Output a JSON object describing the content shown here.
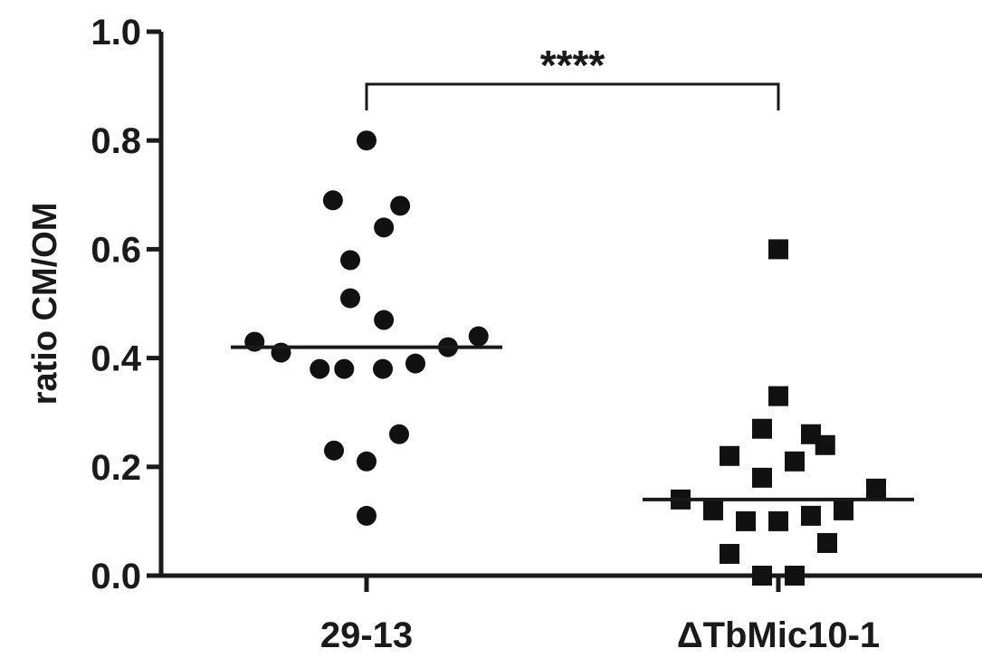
{
  "chart_data": {
    "type": "scatter",
    "title": "",
    "xlabel": "",
    "ylabel": "ratio CM/OM",
    "ylim": [
      0,
      1.0
    ],
    "yticks": [
      "0.0",
      "0.2",
      "0.4",
      "0.6",
      "0.8",
      "1.0"
    ],
    "ytick_values": [
      0,
      0.2,
      0.4,
      0.6,
      0.8,
      1.0
    ],
    "categories": [
      "29-13",
      "ΔTbMic10-1"
    ],
    "grid": false,
    "legend": "none",
    "series": [
      {
        "marker": "circle",
        "color": "#111111",
        "values": [
          0.8,
          0.69,
          0.68,
          0.64,
          0.58,
          0.51,
          0.47,
          0.43,
          0.41,
          0.38,
          0.38,
          0.38,
          0.39,
          0.42,
          0.44,
          0.23,
          0.21,
          0.26,
          0.11
        ],
        "jitter": [
          0,
          -0.165,
          0.165,
          0.085,
          -0.08,
          -0.08,
          0.085,
          -0.55,
          -0.42,
          -0.23,
          -0.11,
          0.08,
          0.24,
          0.4,
          0.55,
          -0.16,
          0,
          0.16,
          0
        ],
        "median": 0.42
      },
      {
        "marker": "square",
        "color": "#111111",
        "values": [
          0.6,
          0.33,
          0.27,
          0.22,
          0.26,
          0.24,
          0.21,
          0.18,
          0.14,
          0.12,
          0.1,
          0.1,
          0.11,
          0.12,
          0.16,
          0.04,
          0.06,
          0.0,
          0.0
        ],
        "jitter": [
          0,
          0,
          -0.08,
          -0.24,
          0.16,
          0.23,
          0.08,
          -0.08,
          -0.48,
          -0.32,
          -0.16,
          0,
          0.16,
          0.32,
          0.48,
          -0.24,
          0.24,
          -0.08,
          0.08
        ],
        "median": 0.14
      }
    ],
    "comparison": {
      "from": 0,
      "to": 1,
      "label": "****"
    }
  }
}
